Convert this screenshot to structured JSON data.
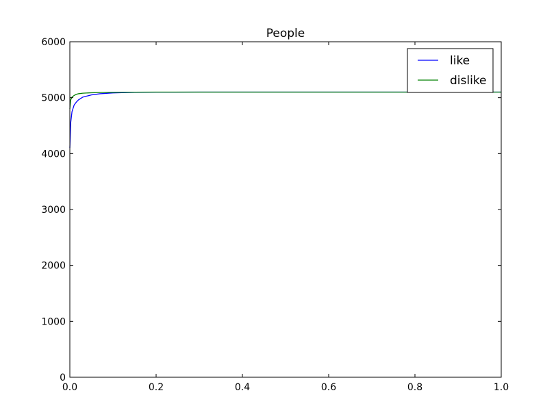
{
  "chart_data": {
    "type": "line",
    "title": "People",
    "xlabel": "",
    "ylabel": "",
    "xlim": [
      0.0,
      1.0
    ],
    "ylim": [
      0,
      6000
    ],
    "xticks": [
      "0.0",
      "0.2",
      "0.4",
      "0.6",
      "0.8",
      "1.0"
    ],
    "yticks": [
      "0",
      "1000",
      "2000",
      "3000",
      "4000",
      "5000",
      "6000"
    ],
    "grid": false,
    "legend_position": "top-right",
    "series": [
      {
        "name": "like",
        "color": "#0000ff",
        "x": [
          0.0,
          0.002,
          0.005,
          0.01,
          0.015,
          0.02,
          0.03,
          0.05,
          0.07,
          0.1,
          0.15,
          0.2,
          0.3,
          0.5,
          0.7,
          1.0
        ],
        "y": [
          4100,
          4550,
          4750,
          4870,
          4920,
          4960,
          5010,
          5050,
          5070,
          5085,
          5095,
          5098,
          5100,
          5100,
          5100,
          5100
        ]
      },
      {
        "name": "dislike",
        "color": "#008000",
        "x": [
          0.0,
          0.002,
          0.005,
          0.01,
          0.015,
          0.02,
          0.03,
          0.05,
          0.07,
          0.1,
          0.15,
          0.2,
          0.3,
          0.5,
          0.7,
          1.0
        ],
        "y": [
          4800,
          4960,
          5010,
          5040,
          5060,
          5070,
          5080,
          5088,
          5092,
          5095,
          5098,
          5100,
          5100,
          5100,
          5100,
          5100
        ]
      }
    ]
  }
}
